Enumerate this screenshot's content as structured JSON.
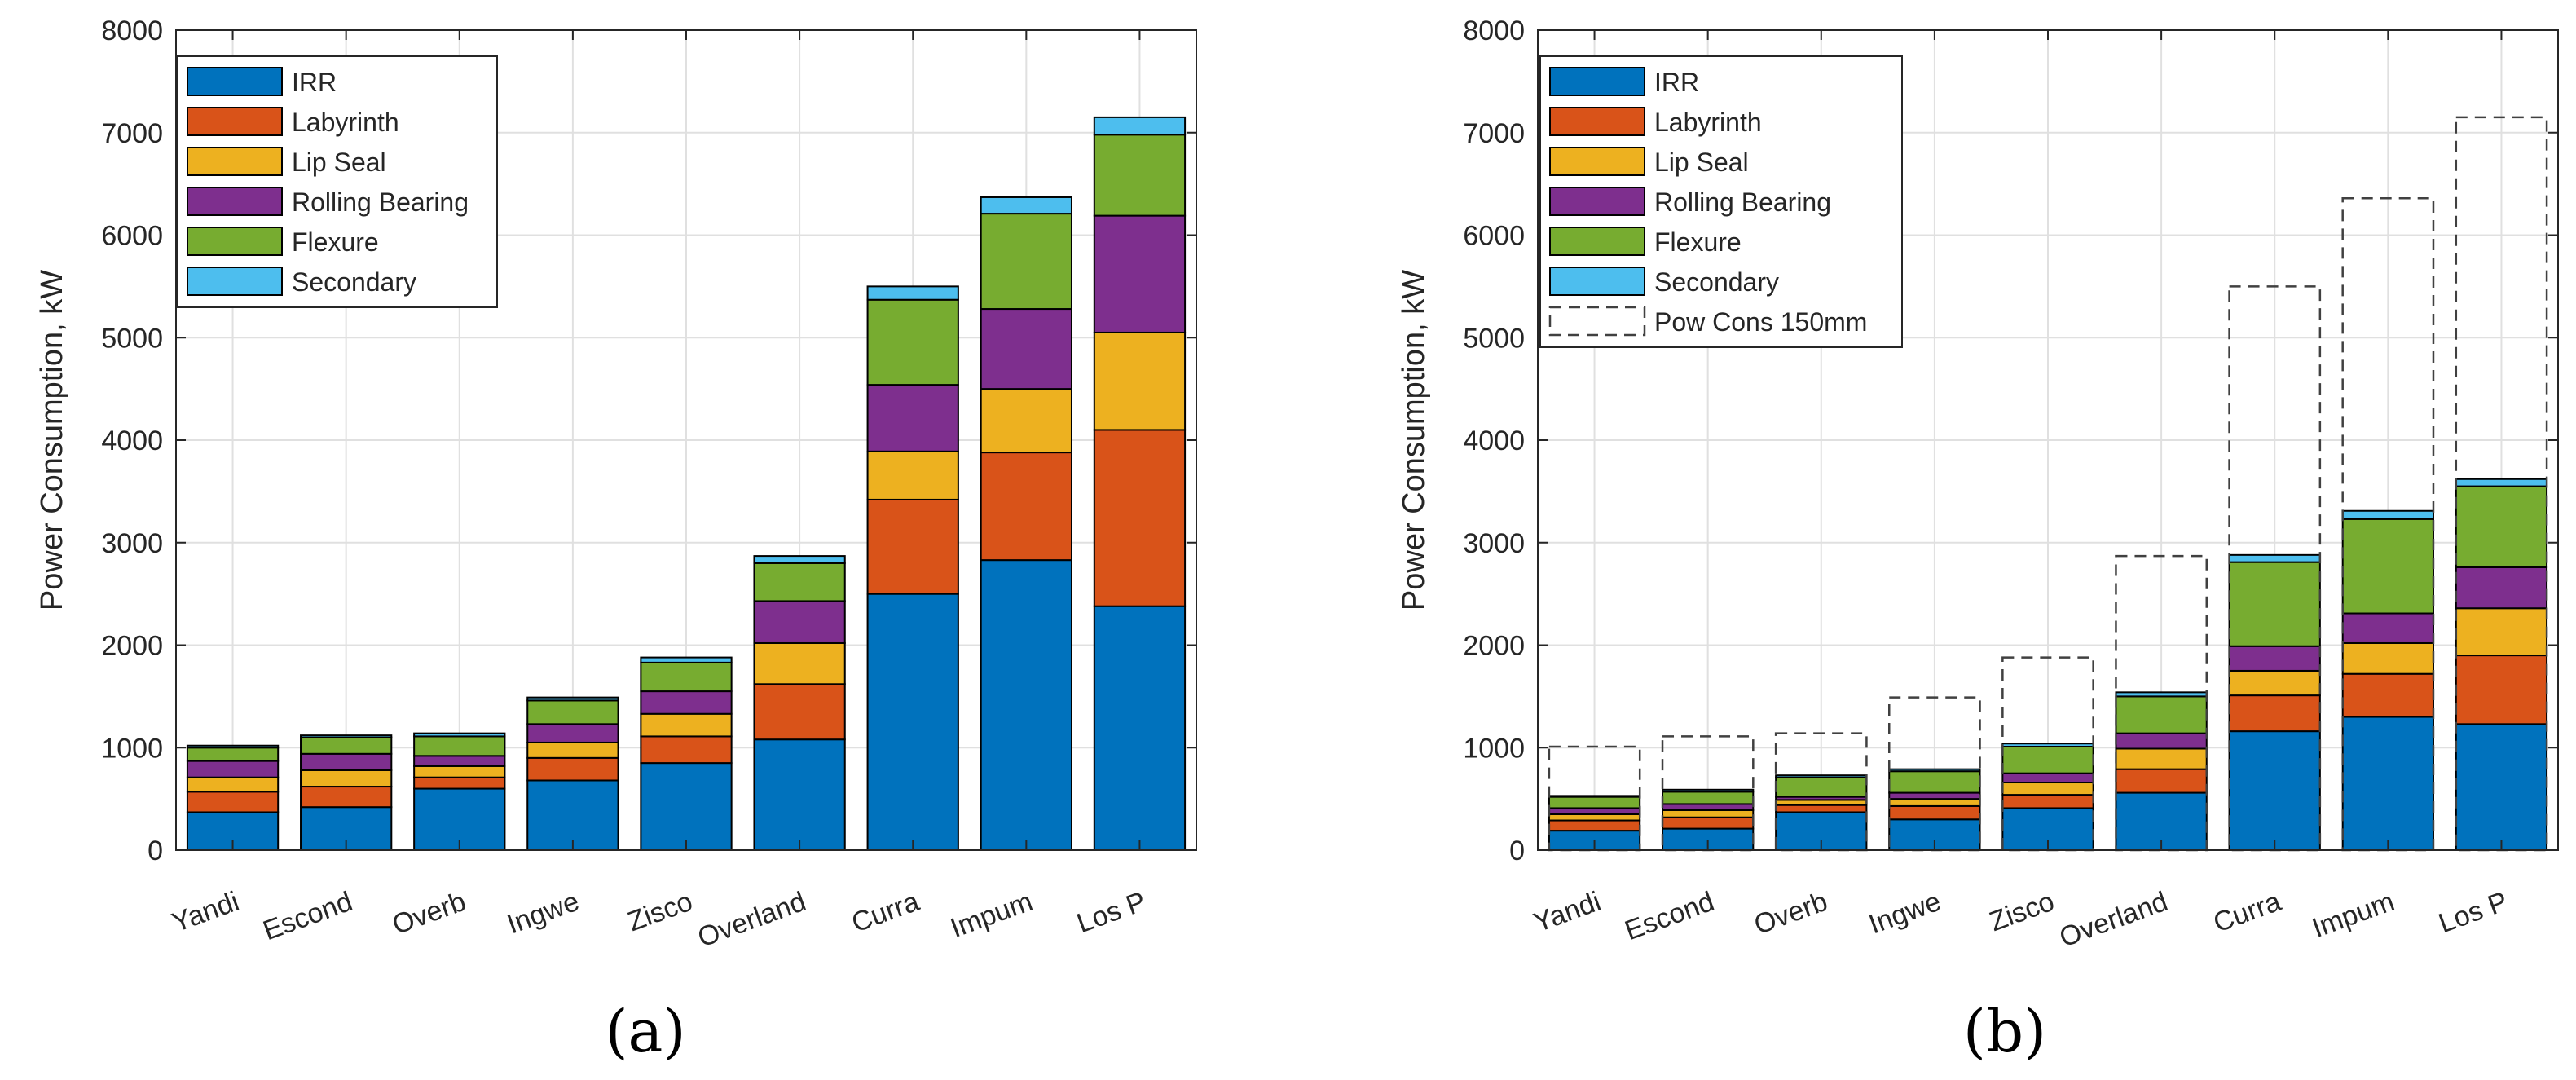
{
  "chart_data": [
    {
      "type": "bar",
      "stacked": true,
      "panel_label": "(a)",
      "title": "",
      "xlabel": "",
      "ylabel": "Power Consumption, kW",
      "ylim": [
        0,
        8000
      ],
      "yticks": [
        0,
        1000,
        2000,
        3000,
        4000,
        5000,
        6000,
        7000,
        8000
      ],
      "grid": true,
      "legend_position": "top-left",
      "categories": [
        "Yandi",
        "Escond",
        "Overb",
        "Ingwe",
        "Zisco",
        "Overland",
        "Curra",
        "Impum",
        "Los P"
      ],
      "series": [
        {
          "name": "IRR",
          "color": "#0072BD",
          "values": [
            370,
            420,
            600,
            680,
            850,
            1080,
            2500,
            2830,
            2380
          ]
        },
        {
          "name": "Labyrinth",
          "color": "#D95319",
          "values": [
            200,
            200,
            110,
            220,
            260,
            540,
            920,
            1050,
            1720
          ]
        },
        {
          "name": "Lip Seal",
          "color": "#EDB120",
          "values": [
            140,
            160,
            110,
            150,
            220,
            400,
            470,
            620,
            950
          ]
        },
        {
          "name": "Rolling Bearing",
          "color": "#7E2F8E",
          "values": [
            160,
            160,
            100,
            180,
            220,
            410,
            650,
            780,
            1140
          ]
        },
        {
          "name": "Flexure",
          "color": "#77AC30",
          "values": [
            130,
            160,
            190,
            230,
            280,
            370,
            830,
            930,
            790
          ]
        },
        {
          "name": "Secondary",
          "color": "#4DBEEE",
          "values": [
            20,
            20,
            30,
            30,
            50,
            70,
            130,
            160,
            170
          ]
        }
      ]
    },
    {
      "type": "bar",
      "stacked": true,
      "panel_label": "(b)",
      "title": "",
      "xlabel": "",
      "ylabel": "Power Consumption, kW",
      "ylim": [
        0,
        8000
      ],
      "yticks": [
        0,
        1000,
        2000,
        3000,
        4000,
        5000,
        6000,
        7000,
        8000
      ],
      "grid": true,
      "legend_position": "top-left",
      "categories": [
        "Yandi",
        "Escond",
        "Overb",
        "Ingwe",
        "Zisco",
        "Overland",
        "Curra",
        "Impum",
        "Los P"
      ],
      "series": [
        {
          "name": "IRR",
          "color": "#0072BD",
          "values": [
            190,
            210,
            370,
            300,
            410,
            560,
            1160,
            1300,
            1230
          ]
        },
        {
          "name": "Labyrinth",
          "color": "#D95319",
          "values": [
            100,
            110,
            70,
            130,
            130,
            230,
            350,
            420,
            670
          ]
        },
        {
          "name": "Lip Seal",
          "color": "#EDB120",
          "values": [
            60,
            70,
            50,
            70,
            120,
            200,
            240,
            300,
            460
          ]
        },
        {
          "name": "Rolling Bearing",
          "color": "#7E2F8E",
          "values": [
            60,
            60,
            30,
            60,
            90,
            150,
            240,
            290,
            400
          ]
        },
        {
          "name": "Flexure",
          "color": "#77AC30",
          "values": [
            110,
            120,
            190,
            210,
            260,
            360,
            820,
            920,
            790
          ]
        },
        {
          "name": "Secondary",
          "color": "#4DBEEE",
          "values": [
            10,
            20,
            20,
            20,
            30,
            40,
            70,
            80,
            70
          ]
        }
      ],
      "reference_series": {
        "name": "Pow Cons 150mm",
        "style": "dashed-outline",
        "values": [
          1010,
          1110,
          1140,
          1490,
          1880,
          2870,
          5500,
          6360,
          7150
        ]
      }
    }
  ]
}
